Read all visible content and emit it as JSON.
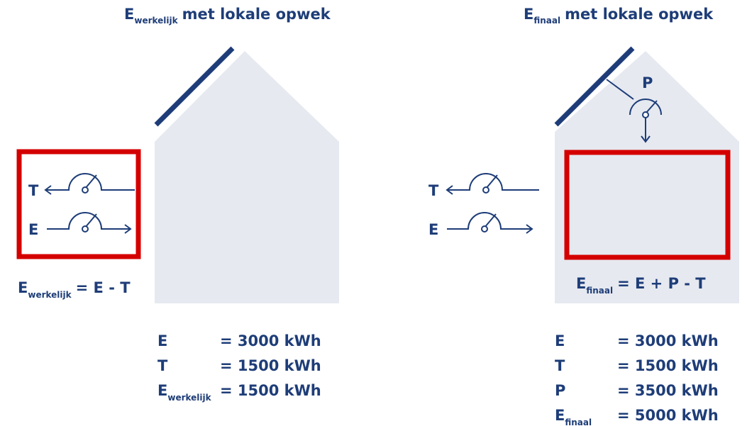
{
  "left": {
    "title": {
      "main": "E",
      "sub": "werkelijk",
      "rest": "met lokale opwek"
    },
    "meters": {
      "t": "T",
      "e": "E"
    },
    "formula": {
      "main": "E",
      "sub": "werkelijk",
      "rest": "= E - T"
    },
    "table": [
      {
        "label": "E",
        "value": "= 3000 kWh"
      },
      {
        "label": "T",
        "value": "= 1500 kWh"
      },
      {
        "label": "E",
        "sub": "werkelijk",
        "value": "= 1500 kWh"
      }
    ]
  },
  "right": {
    "title": {
      "main": "E",
      "sub": "finaal",
      "rest": "met lokale opwek"
    },
    "meters": {
      "t": "T",
      "e": "E",
      "p": "P"
    },
    "formula": {
      "main": "E",
      "sub": "finaal",
      "rest": "= E + P - T"
    },
    "table": [
      {
        "label": "E",
        "value": "= 3000 kWh"
      },
      {
        "label": "T",
        "value": "= 1500 kWh"
      },
      {
        "label": "P",
        "value": "= 3500 kWh"
      },
      {
        "label": "E",
        "sub": "finaal",
        "value": "= 5000 kWh"
      }
    ]
  }
}
